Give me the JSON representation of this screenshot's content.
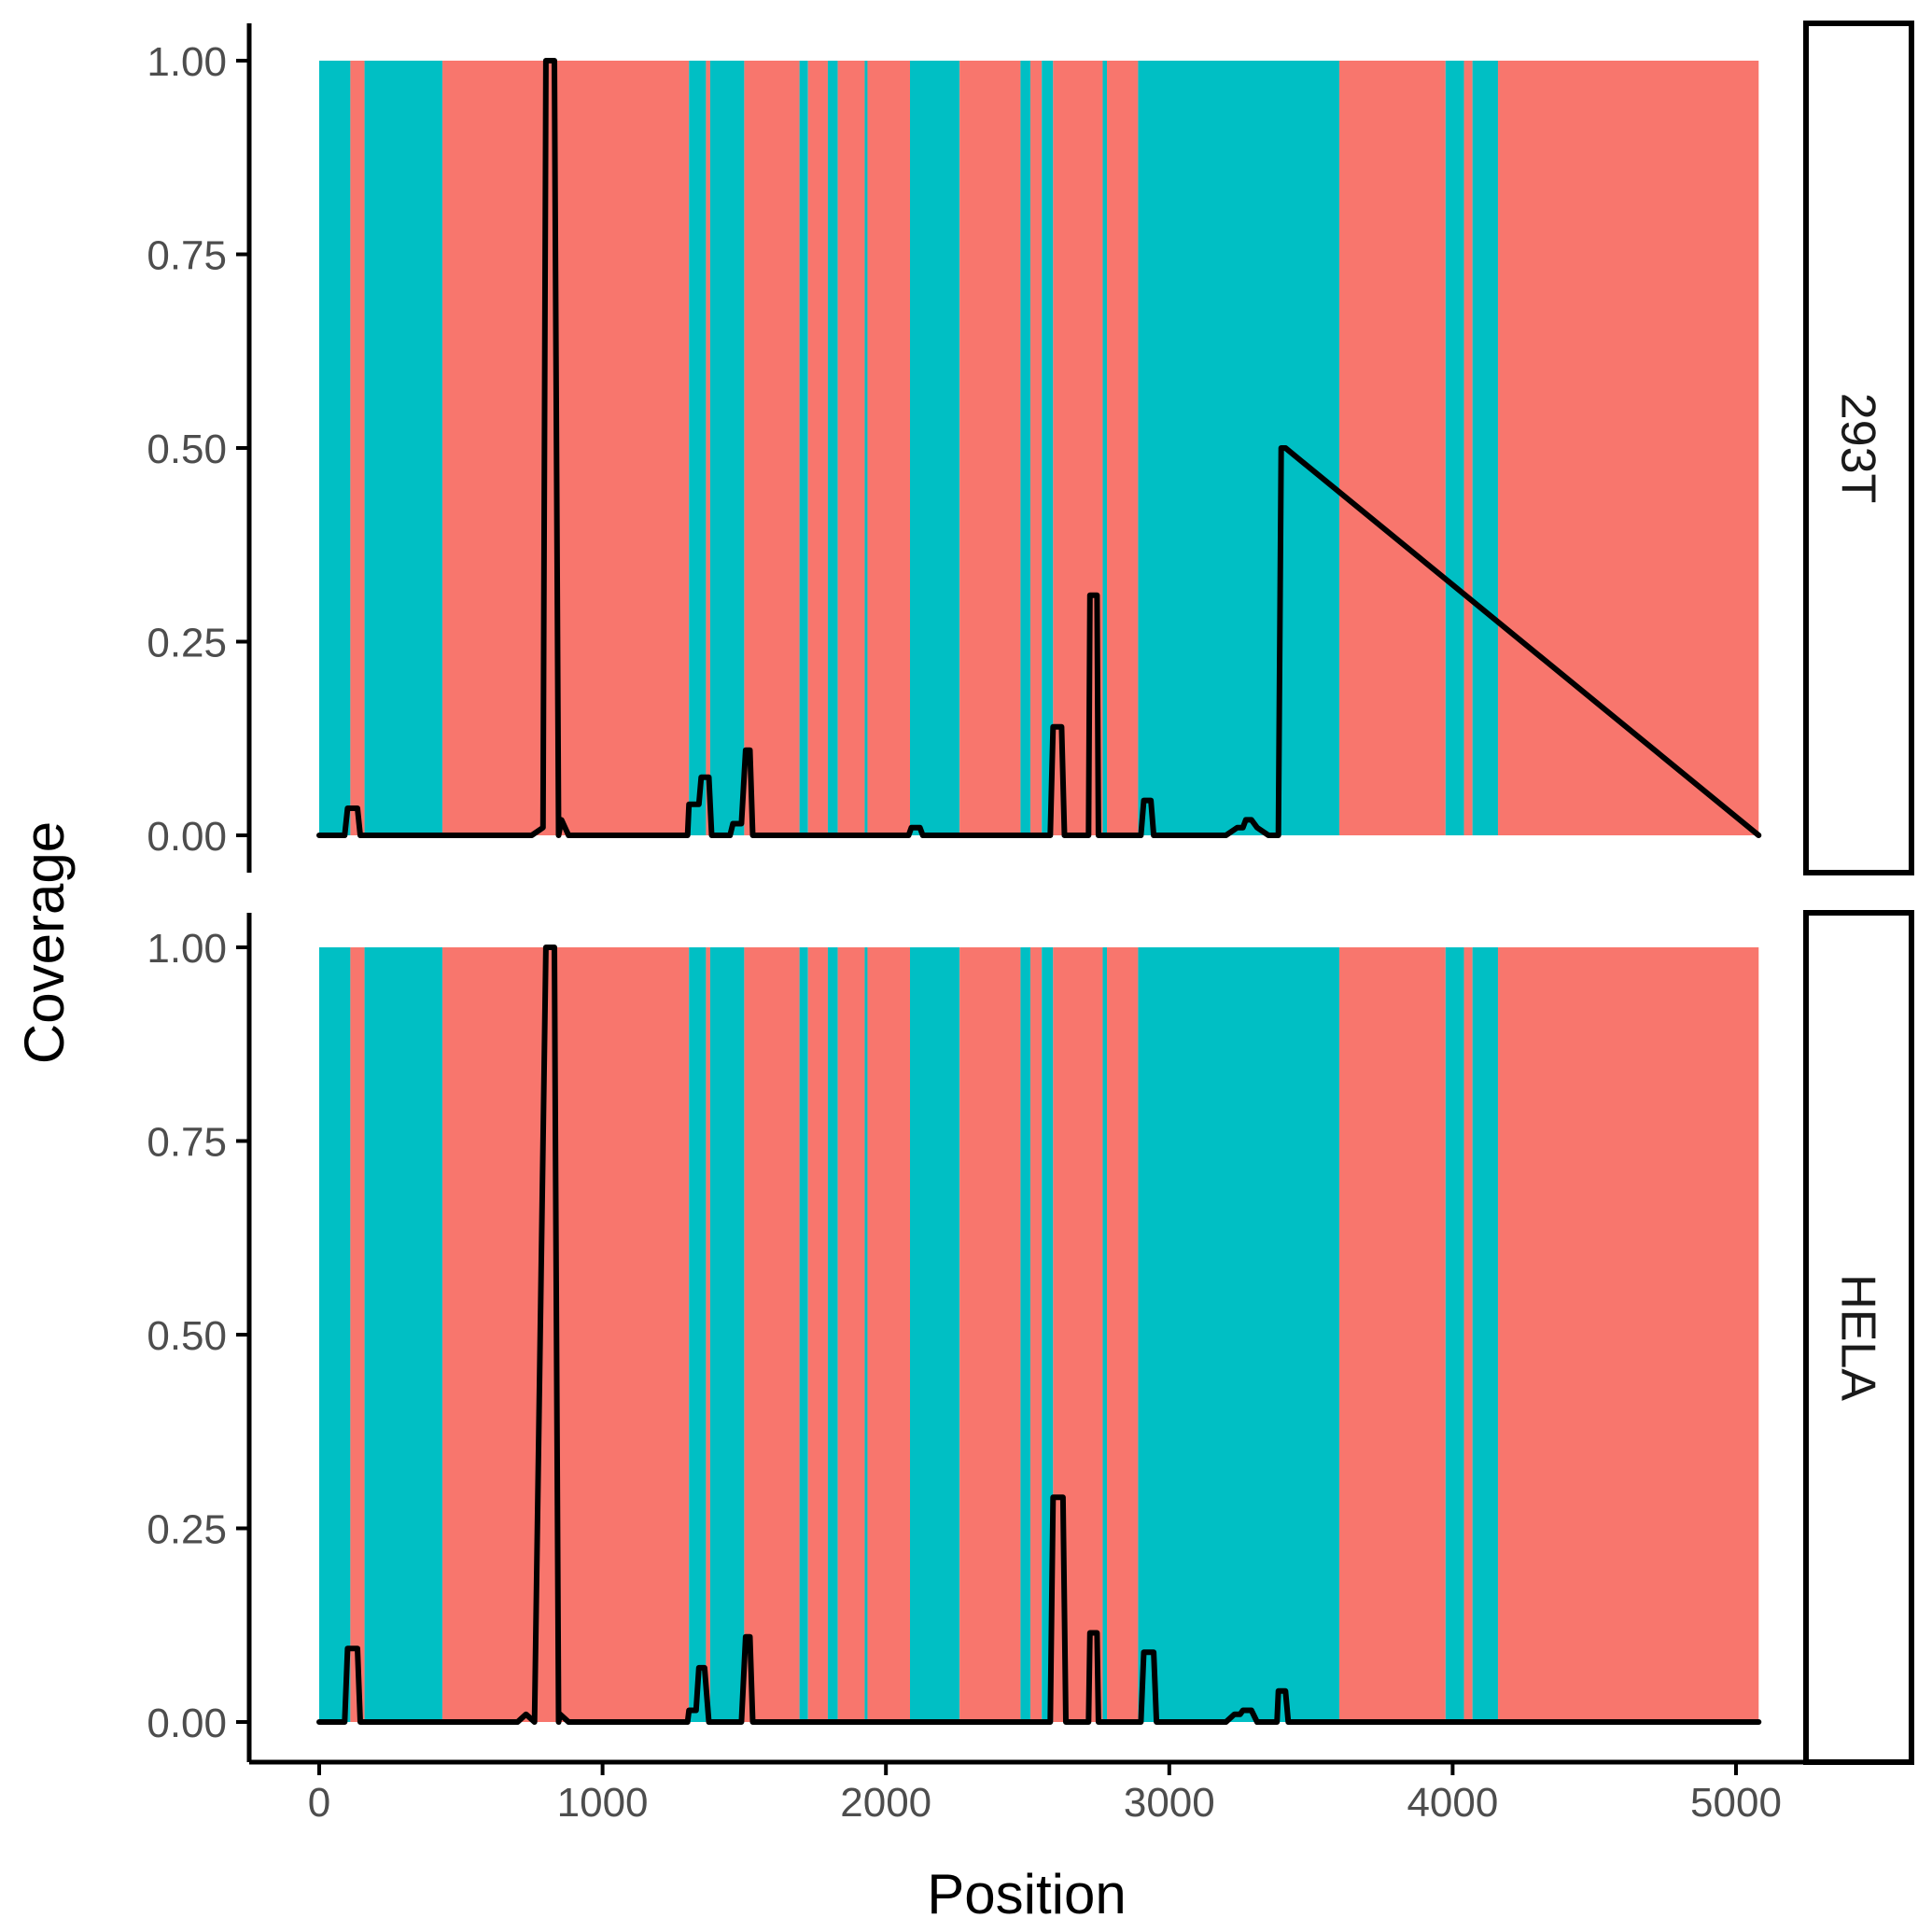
{
  "chart_data": {
    "type": "area",
    "title": "",
    "xlabel": "Position",
    "ylabel": "Coverage",
    "xlim": [
      0,
      5080
    ],
    "ylim": [
      0,
      1.0
    ],
    "x_ticks": [
      0,
      1000,
      2000,
      3000,
      4000,
      5000
    ],
    "x_tick_labels": [
      "0",
      "1000",
      "2000",
      "3000",
      "4000",
      "5000"
    ],
    "y_ticks": [
      0,
      0.25,
      0.5,
      0.75,
      1.0
    ],
    "y_tick_labels": [
      "0.00",
      "0.25",
      "0.50",
      "0.75",
      "1.00"
    ],
    "grid": false,
    "region_colors": {
      "teal": "#00BFC4",
      "salmon": "#F8766D"
    },
    "line_color": "#000000",
    "regions": [
      {
        "start": 0,
        "end": 110,
        "class": "teal"
      },
      {
        "start": 110,
        "end": 160,
        "class": "salmon"
      },
      {
        "start": 160,
        "end": 435,
        "class": "teal"
      },
      {
        "start": 435,
        "end": 1305,
        "class": "salmon"
      },
      {
        "start": 1305,
        "end": 1365,
        "class": "teal"
      },
      {
        "start": 1365,
        "end": 1380,
        "class": "salmon"
      },
      {
        "start": 1380,
        "end": 1500,
        "class": "teal"
      },
      {
        "start": 1500,
        "end": 1695,
        "class": "salmon"
      },
      {
        "start": 1695,
        "end": 1725,
        "class": "teal"
      },
      {
        "start": 1725,
        "end": 1795,
        "class": "salmon"
      },
      {
        "start": 1795,
        "end": 1830,
        "class": "teal"
      },
      {
        "start": 1830,
        "end": 1925,
        "class": "salmon"
      },
      {
        "start": 1925,
        "end": 1935,
        "class": "teal"
      },
      {
        "start": 1935,
        "end": 2085,
        "class": "salmon"
      },
      {
        "start": 2085,
        "end": 2260,
        "class": "teal"
      },
      {
        "start": 2260,
        "end": 2475,
        "class": "salmon"
      },
      {
        "start": 2475,
        "end": 2510,
        "class": "teal"
      },
      {
        "start": 2510,
        "end": 2550,
        "class": "salmon"
      },
      {
        "start": 2550,
        "end": 2590,
        "class": "teal"
      },
      {
        "start": 2590,
        "end": 2765,
        "class": "salmon"
      },
      {
        "start": 2765,
        "end": 2780,
        "class": "teal"
      },
      {
        "start": 2780,
        "end": 2890,
        "class": "salmon"
      },
      {
        "start": 2890,
        "end": 3600,
        "class": "teal"
      },
      {
        "start": 3600,
        "end": 3975,
        "class": "salmon"
      },
      {
        "start": 3975,
        "end": 4040,
        "class": "teal"
      },
      {
        "start": 4040,
        "end": 4070,
        "class": "salmon"
      },
      {
        "start": 4070,
        "end": 4160,
        "class": "teal"
      },
      {
        "start": 4160,
        "end": 5080,
        "class": "salmon"
      }
    ],
    "series": [
      {
        "name": "293T",
        "x": [
          0,
          90,
          100,
          135,
          145,
          500,
          750,
          790,
          800,
          830,
          845,
          855,
          880,
          950,
          970,
          1300,
          1305,
          1340,
          1348,
          1375,
          1385,
          1450,
          1460,
          1490,
          1505,
          1520,
          1530,
          2080,
          2090,
          2120,
          2130,
          2580,
          2590,
          2620,
          2630,
          2715,
          2720,
          2745,
          2750,
          2900,
          2910,
          2935,
          2945,
          3200,
          3240,
          3260,
          3270,
          3290,
          3310,
          3350,
          3370,
          3385,
          3395,
          3410,
          5080
        ],
        "values": [
          0,
          0,
          0.035,
          0.035,
          0,
          0,
          0,
          0.01,
          1.0,
          1.0,
          0,
          0.02,
          0,
          0,
          0,
          0,
          0.04,
          0.04,
          0.075,
          0.075,
          0,
          0,
          0.015,
          0.015,
          0.11,
          0.11,
          0,
          0,
          0.01,
          0.01,
          0,
          0,
          0.14,
          0.14,
          0,
          0,
          0.31,
          0.31,
          0,
          0,
          0.045,
          0.045,
          0,
          0,
          0.01,
          0.01,
          0.02,
          0.02,
          0.01,
          0,
          0,
          0,
          0.5,
          0.5,
          0
        ]
      },
      {
        "name": "HELA",
        "x": [
          0,
          90,
          100,
          135,
          145,
          700,
          730,
          760,
          800,
          830,
          845,
          850,
          880,
          950,
          970,
          1300,
          1305,
          1330,
          1340,
          1360,
          1375,
          1490,
          1505,
          1520,
          1530,
          2580,
          2590,
          2625,
          2635,
          2715,
          2720,
          2745,
          2750,
          2900,
          2910,
          2945,
          2955,
          3200,
          3230,
          3250,
          3260,
          3290,
          3310,
          3380,
          3385,
          3410,
          3420,
          5080
        ],
        "values": [
          0,
          0,
          0.095,
          0.095,
          0,
          0,
          0.01,
          0,
          1.0,
          1.0,
          0,
          0.01,
          0,
          0,
          0,
          0,
          0.015,
          0.015,
          0.07,
          0.07,
          0,
          0,
          0.11,
          0.11,
          0,
          0,
          0.29,
          0.29,
          0,
          0,
          0.115,
          0.115,
          0,
          0,
          0.09,
          0.09,
          0,
          0,
          0.01,
          0.01,
          0.015,
          0.015,
          0,
          0,
          0.04,
          0.04,
          0,
          0
        ]
      }
    ]
  },
  "panels": [
    {
      "strip": "293T"
    },
    {
      "strip": "HELA"
    }
  ]
}
